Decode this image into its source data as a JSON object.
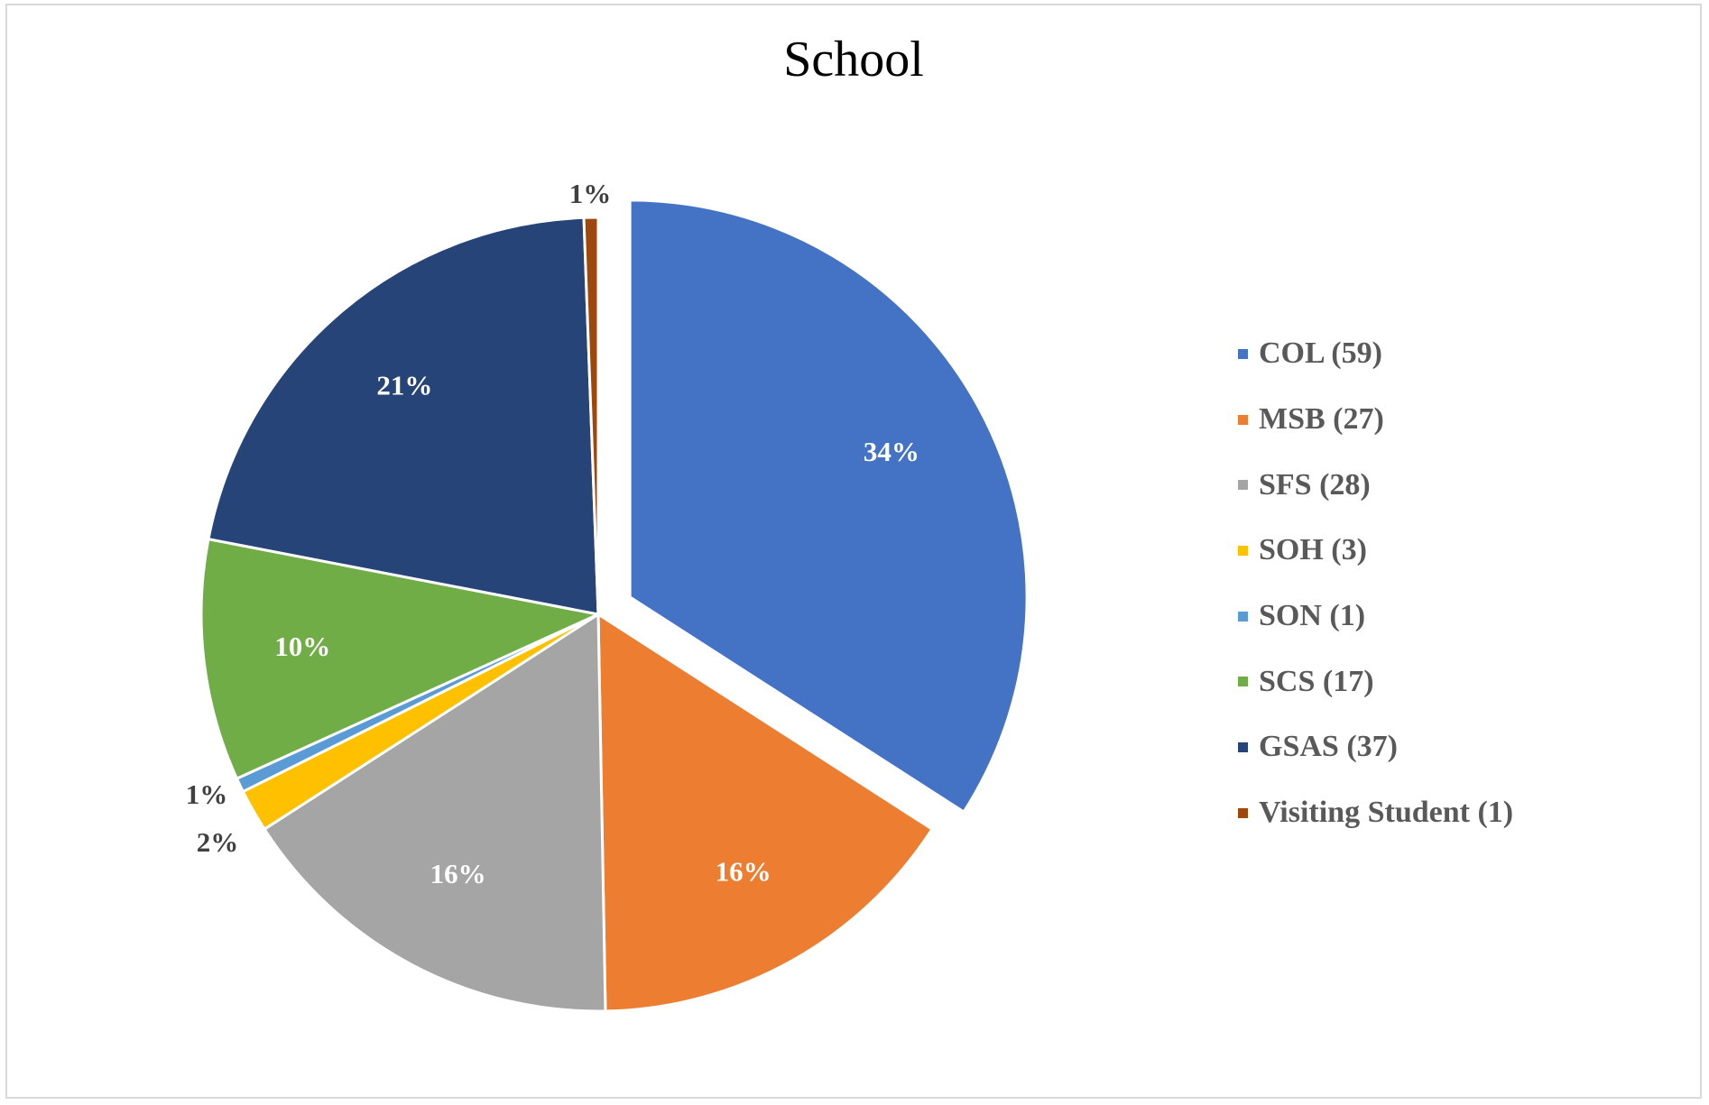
{
  "chart_data": {
    "type": "pie",
    "title": "School",
    "slices": [
      {
        "label": "COL (59)",
        "value": 59,
        "percent_label": "34%",
        "color": "#4472c4",
        "label_color": "#ffffff",
        "explode": true,
        "label_inside": true
      },
      {
        "label": "MSB (27)",
        "value": 27,
        "percent_label": "16%",
        "color": "#ed7d31",
        "label_color": "#ffffff",
        "explode": false,
        "label_inside": true
      },
      {
        "label": "SFS (28)",
        "value": 28,
        "percent_label": "16%",
        "color": "#a5a5a5",
        "label_color": "#ffffff",
        "explode": false,
        "label_inside": true
      },
      {
        "label": "SOH (3)",
        "value": 3,
        "percent_label": "2%",
        "color": "#ffc000",
        "label_color": "#404040",
        "explode": false,
        "label_inside": false
      },
      {
        "label": "SON (1)",
        "value": 1,
        "percent_label": "1%",
        "color": "#5b9bd5",
        "label_color": "#404040",
        "explode": false,
        "label_inside": false
      },
      {
        "label": "SCS (17)",
        "value": 17,
        "percent_label": "10%",
        "color": "#70ad47",
        "label_color": "#ffffff",
        "explode": false,
        "label_inside": true
      },
      {
        "label": "GSAS (37)",
        "value": 37,
        "percent_label": "21%",
        "color": "#264478",
        "label_color": "#ffffff",
        "explode": false,
        "label_inside": true
      },
      {
        "label": "Visiting Student (1)",
        "value": 1,
        "percent_label": "1%",
        "color": "#9e480e",
        "label_color": "#404040",
        "explode": false,
        "label_inside": false
      }
    ],
    "legend_position": "right",
    "start_angle_deg": 0,
    "direction": "clockwise"
  }
}
